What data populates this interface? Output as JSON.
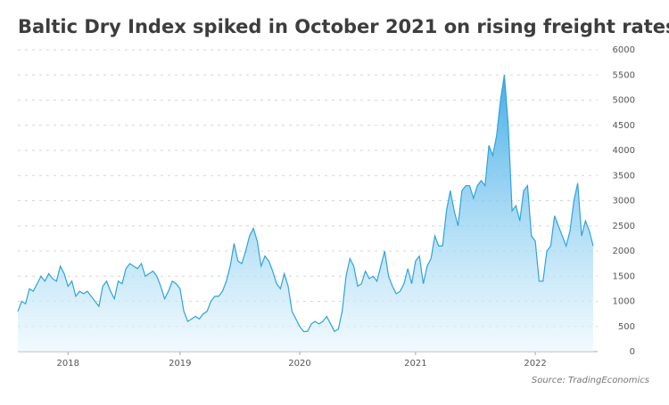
{
  "chart_data": {
    "type": "area",
    "title": "Baltic Dry Index spiked in October 2021 on rising freight rates",
    "source": "Source: TradingEconomics",
    "color": "#2fa4dc",
    "grid": true,
    "categories": [
      null,
      null,
      null,
      null,
      null,
      null,
      null,
      null,
      null,
      null,
      null,
      null,
      null,
      "2018",
      null,
      null,
      null,
      null,
      null,
      null,
      null,
      null,
      null,
      null,
      null,
      null,
      null,
      null,
      null,
      null,
      null,
      null,
      null,
      null,
      null,
      null,
      null,
      null,
      null,
      null,
      null,
      null,
      "2019",
      null,
      null,
      null,
      null,
      null,
      null,
      null,
      null,
      null,
      null,
      null,
      null,
      null,
      null,
      null,
      null,
      null,
      null,
      null,
      null,
      null,
      null,
      null,
      null,
      null,
      null,
      null,
      null,
      null,
      null,
      "2020",
      null,
      null,
      null,
      null,
      null,
      null,
      null,
      null,
      null,
      null,
      null,
      null,
      null,
      null,
      null,
      null,
      null,
      null,
      null,
      null,
      null,
      null,
      null,
      null,
      null,
      null,
      null,
      null,
      null,
      "2021",
      null,
      null,
      null,
      null,
      null,
      null,
      null,
      null,
      null,
      null,
      null,
      null,
      null,
      null,
      null,
      null,
      null,
      null,
      null,
      null,
      null,
      null,
      null,
      null,
      null,
      null,
      null,
      null,
      null,
      null,
      "2022",
      null,
      null,
      null,
      null,
      null,
      null,
      null,
      null,
      null,
      null,
      null,
      null,
      null,
      null,
      null
    ],
    "values": [
      800,
      1000,
      950,
      1250,
      1200,
      1350,
      1500,
      1400,
      1550,
      1450,
      1400,
      1700,
      1550,
      1300,
      1400,
      1100,
      1200,
      1150,
      1200,
      1100,
      1000,
      900,
      1300,
      1400,
      1200,
      1050,
      1400,
      1350,
      1650,
      1750,
      1700,
      1650,
      1750,
      1500,
      1550,
      1600,
      1500,
      1300,
      1050,
      1200,
      1400,
      1350,
      1250,
      800,
      600,
      650,
      700,
      650,
      750,
      800,
      1000,
      1100,
      1100,
      1200,
      1400,
      1700,
      2150,
      1800,
      1750,
      2000,
      2300,
      2450,
      2200,
      1700,
      1900,
      1800,
      1600,
      1350,
      1250,
      1550,
      1300,
      800,
      650,
      500,
      400,
      400,
      550,
      600,
      550,
      600,
      700,
      550,
      400,
      450,
      800,
      1500,
      1850,
      1700,
      1300,
      1350,
      1600,
      1450,
      1500,
      1400,
      1700,
      2000,
      1500,
      1300,
      1150,
      1200,
      1350,
      1650,
      1350,
      1800,
      1900,
      1350,
      1700,
      1850,
      2300,
      2100,
      2100,
      2800,
      3200,
      2800,
      2500,
      3200,
      3300,
      3300,
      3050,
      3300,
      3400,
      3300,
      4100,
      3900,
      4300,
      5000,
      5500,
      4500,
      2800,
      2900,
      2600,
      3200,
      3300,
      2300,
      2200,
      1400,
      1400,
      2000,
      2100,
      2700,
      2500,
      2300,
      2100,
      2400,
      3000,
      3350,
      2300,
      2600,
      2400,
      2100
    ],
    "ylim": [
      0,
      6000
    ],
    "yticks": [
      0,
      500,
      1000,
      1500,
      2000,
      2500,
      3000,
      3500,
      4000,
      4500,
      5000,
      5500,
      6000
    ]
  }
}
